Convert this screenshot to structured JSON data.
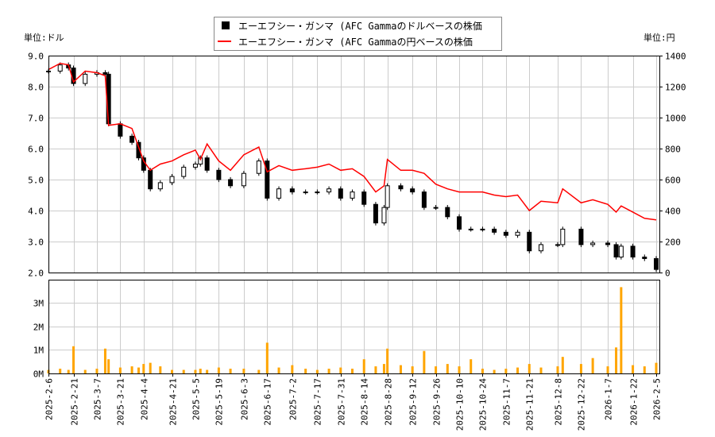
{
  "chart_data": [
    {
      "type": "candlestick+line",
      "title": "",
      "legend": {
        "placement": "top-center",
        "entries": [
          {
            "label": "エーエフシー・ガンマ (AFC Gammaのドルベースの株価",
            "color": "#000000",
            "marker": "square"
          },
          {
            "label": "エーエフシー・ガンマ (AFC Gammaの円ベースの株価",
            "color": "#ff0000",
            "marker": "line"
          }
        ]
      },
      "ylabel_left": "単位:ドル",
      "ylabel_right": "単位:円",
      "ylim_left": [
        2.0,
        9.0
      ],
      "ylim_right": [
        0,
        1400
      ],
      "yticks_left": [
        "2.0",
        "3.0",
        "4.0",
        "5.0",
        "6.0",
        "7.0",
        "8.0",
        "9.0"
      ],
      "yticks_right": [
        "0",
        "200",
        "400",
        "600",
        "800",
        "1000",
        "1200",
        "1400"
      ],
      "grid": true,
      "xlim": [
        "2025-02-06",
        "2026-02-05"
      ],
      "xticks": [
        "2025-2-6",
        "2025-2-21",
        "2025-3-7",
        "2025-3-21",
        "2025-4-4",
        "2025-4-21",
        "2025-5-5",
        "2025-5-19",
        "2025-6-3",
        "2025-6-17",
        "2025-7-2",
        "2025-7-17",
        "2025-7-31",
        "2025-8-14",
        "2025-8-28",
        "2025-9-12",
        "2025-9-26",
        "2025-10-10",
        "2025-10-24",
        "2025-11-7",
        "2025-11-21",
        "2025-12-8",
        "2025-12-22",
        "2026-1-7",
        "2026-1-22",
        "2026-2-5"
      ],
      "dates": [
        "2025-02-06",
        "2025-02-13",
        "2025-02-18",
        "2025-02-21",
        "2025-02-28",
        "2025-03-07",
        "2025-03-12",
        "2025-03-14",
        "2025-03-21",
        "2025-03-28",
        "2025-04-01",
        "2025-04-04",
        "2025-04-08",
        "2025-04-14",
        "2025-04-21",
        "2025-04-28",
        "2025-05-05",
        "2025-05-08",
        "2025-05-12",
        "2025-05-19",
        "2025-05-26",
        "2025-06-03",
        "2025-06-12",
        "2025-06-17",
        "2025-06-24",
        "2025-07-02",
        "2025-07-10",
        "2025-07-17",
        "2025-07-24",
        "2025-07-31",
        "2025-08-07",
        "2025-08-14",
        "2025-08-21",
        "2025-08-26",
        "2025-08-28",
        "2025-09-05",
        "2025-09-12",
        "2025-09-19",
        "2025-09-26",
        "2025-10-03",
        "2025-10-10",
        "2025-10-17",
        "2025-10-24",
        "2025-10-31",
        "2025-11-07",
        "2025-11-14",
        "2025-11-21",
        "2025-11-28",
        "2025-12-08",
        "2025-12-11",
        "2025-12-22",
        "2025-12-29",
        "2026-01-07",
        "2026-01-12",
        "2026-01-15",
        "2026-01-22",
        "2026-01-29",
        "2026-02-05"
      ],
      "series": [
        {
          "name": "エーエフシー・ガンマ (AFC Gammaのドルベースの株価",
          "unit": "USD",
          "axis": "left",
          "values": [
            8.5,
            8.7,
            8.6,
            8.1,
            8.4,
            8.45,
            8.4,
            6.8,
            6.4,
            6.2,
            5.7,
            5.3,
            4.7,
            4.9,
            5.1,
            5.4,
            5.5,
            5.7,
            5.3,
            5.0,
            4.8,
            5.2,
            5.6,
            4.4,
            4.7,
            4.6,
            4.6,
            4.6,
            4.7,
            4.4,
            4.6,
            4.2,
            3.6,
            4.1,
            4.8,
            4.7,
            4.6,
            4.1,
            4.1,
            3.8,
            3.4,
            3.4,
            3.4,
            3.3,
            3.2,
            3.3,
            2.7,
            2.9,
            2.9,
            3.4,
            2.9,
            2.95,
            2.9,
            2.5,
            2.85,
            2.5,
            2.45,
            2.1
          ]
        },
        {
          "name": "エーエフシー・ガンマ (AFC Gammaの円ベースの株価",
          "unit": "JPY",
          "axis": "right",
          "values": [
            1310,
            1350,
            1340,
            1230,
            1300,
            1290,
            1270,
            950,
            960,
            930,
            810,
            720,
            660,
            700,
            720,
            760,
            790,
            730,
            830,
            720,
            660,
            760,
            810,
            650,
            690,
            660,
            670,
            680,
            700,
            660,
            670,
            620,
            520,
            560,
            730,
            660,
            660,
            640,
            570,
            540,
            520,
            520,
            520,
            500,
            490,
            500,
            400,
            460,
            450,
            540,
            450,
            470,
            440,
            390,
            430,
            390,
            350,
            340
          ]
        }
      ]
    },
    {
      "type": "bar",
      "yticks": [
        "0M",
        "1M",
        "2M",
        "3M"
      ],
      "ylim": [
        0,
        4000000
      ],
      "color": "#ffa500",
      "dates_ref": "same as price chart",
      "volume": [
        150000,
        200000,
        150000,
        1150000,
        150000,
        200000,
        1050000,
        600000,
        250000,
        300000,
        250000,
        400000,
        450000,
        300000,
        150000,
        150000,
        150000,
        200000,
        150000,
        250000,
        200000,
        200000,
        150000,
        1300000,
        250000,
        350000,
        200000,
        150000,
        200000,
        250000,
        200000,
        600000,
        300000,
        400000,
        1050000,
        350000,
        300000,
        950000,
        300000,
        400000,
        300000,
        600000,
        200000,
        150000,
        200000,
        250000,
        400000,
        250000,
        300000,
        700000,
        400000,
        650000,
        300000,
        1100000,
        3650000,
        350000,
        300000,
        450000
      ]
    }
  ]
}
